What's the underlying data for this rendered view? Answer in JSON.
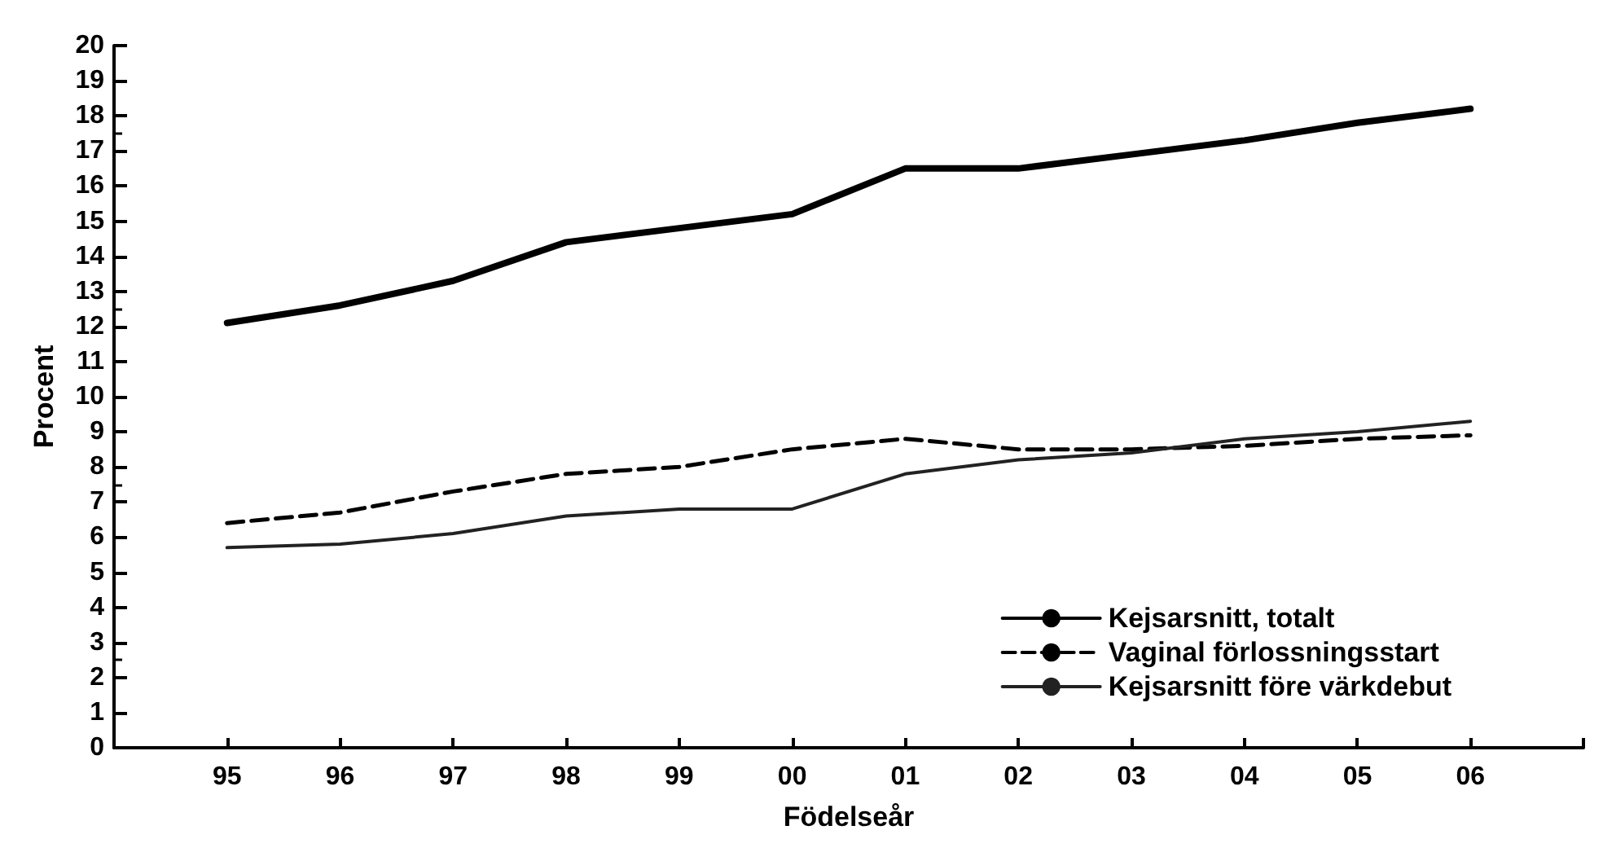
{
  "chart_data": {
    "type": "line",
    "xlabel": "Födelseår",
    "ylabel": "Procent",
    "categories": [
      null,
      "95",
      "96",
      "97",
      "98",
      "99",
      "00",
      "01",
      "02",
      "03",
      "04",
      "05",
      "06",
      null
    ],
    "series": [
      {
        "name": "Kejsarsnitt, totalt",
        "color": "#000000",
        "line_style": "solid",
        "values": [
          null,
          12.1,
          12.6,
          13.3,
          14.4,
          14.8,
          15.2,
          16.5,
          16.5,
          16.9,
          17.3,
          17.8,
          18.2,
          null
        ]
      },
      {
        "name": "Vaginal förlossningsstart",
        "color": "#000000",
        "line_style": "dashed",
        "values": [
          null,
          6.4,
          6.7,
          7.3,
          7.8,
          8.0,
          8.5,
          8.8,
          8.5,
          8.5,
          8.6,
          8.8,
          8.9,
          null
        ]
      },
      {
        "name": "Kejsarsnitt före värkdebut",
        "color": "#222222",
        "line_style": "solid",
        "values": [
          null,
          5.7,
          5.8,
          6.1,
          6.6,
          6.8,
          6.8,
          7.8,
          8.2,
          8.4,
          8.8,
          9.0,
          9.3,
          null
        ]
      }
    ],
    "ylim": [
      0,
      20
    ],
    "yticks": [
      0,
      1,
      2,
      3,
      4,
      5,
      6,
      7,
      8,
      9,
      10,
      11,
      12,
      13,
      14,
      15,
      16,
      17,
      18,
      19,
      20
    ],
    "grid": false,
    "legend": "bottom right"
  }
}
